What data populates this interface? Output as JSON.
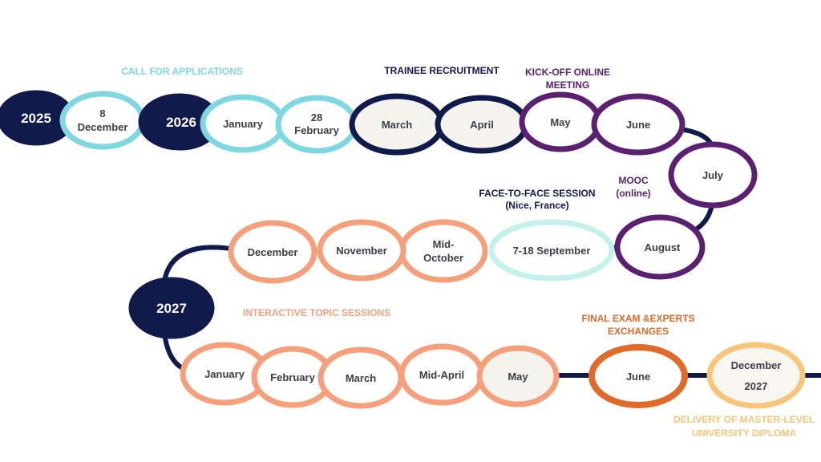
{
  "colors": {
    "navy": "#101a4b",
    "cyan": "#7fd8e0",
    "mint": "#c3f1ec",
    "purple": "#5a2170",
    "salmon": "#f5a07a",
    "orange": "#e06a2a",
    "gold": "#f7c67a"
  },
  "headings": {
    "call": "CALL FOR APPLICATIONS",
    "recruit": "TRAINEE RECRUITMENT",
    "kickoff1": "KICK-OFF ONLINE",
    "kickoff2": "MEETING",
    "mooc1": "MOOC",
    "mooc2": "(online)",
    "f2f1": "FACE-TO-FACE SESSION",
    "f2f2": "(Nice, France)",
    "topics": "INTERACTIVE TOPIC SESSIONS",
    "final1": "FINAL EXAM &EXPERTS",
    "final2": "EXCHANGES",
    "diploma1": "DELIVERY OF MASTER-LEVEL",
    "diploma2": "UNIVERSITY DIPLOMA"
  },
  "nodes": {
    "y2025": "2025",
    "dec8a": "8",
    "dec8b": "December",
    "y2026": "2026",
    "jan26": "January",
    "feb28a": "28",
    "feb28b": "February",
    "mar26": "March",
    "apr26": "April",
    "may26": "May",
    "jun26": "June",
    "jul26": "July",
    "aug26": "August",
    "sep26": "7-18 September",
    "oct26a": "Mid-",
    "oct26b": "October",
    "nov26": "November",
    "dec26": "December",
    "y2027": "2027",
    "jan27": "January",
    "feb27": "February",
    "mar27": "March",
    "apr27": "Mid-April",
    "may27": "May",
    "jun27": "June",
    "dec27a": "December",
    "dec27b": "2027"
  }
}
